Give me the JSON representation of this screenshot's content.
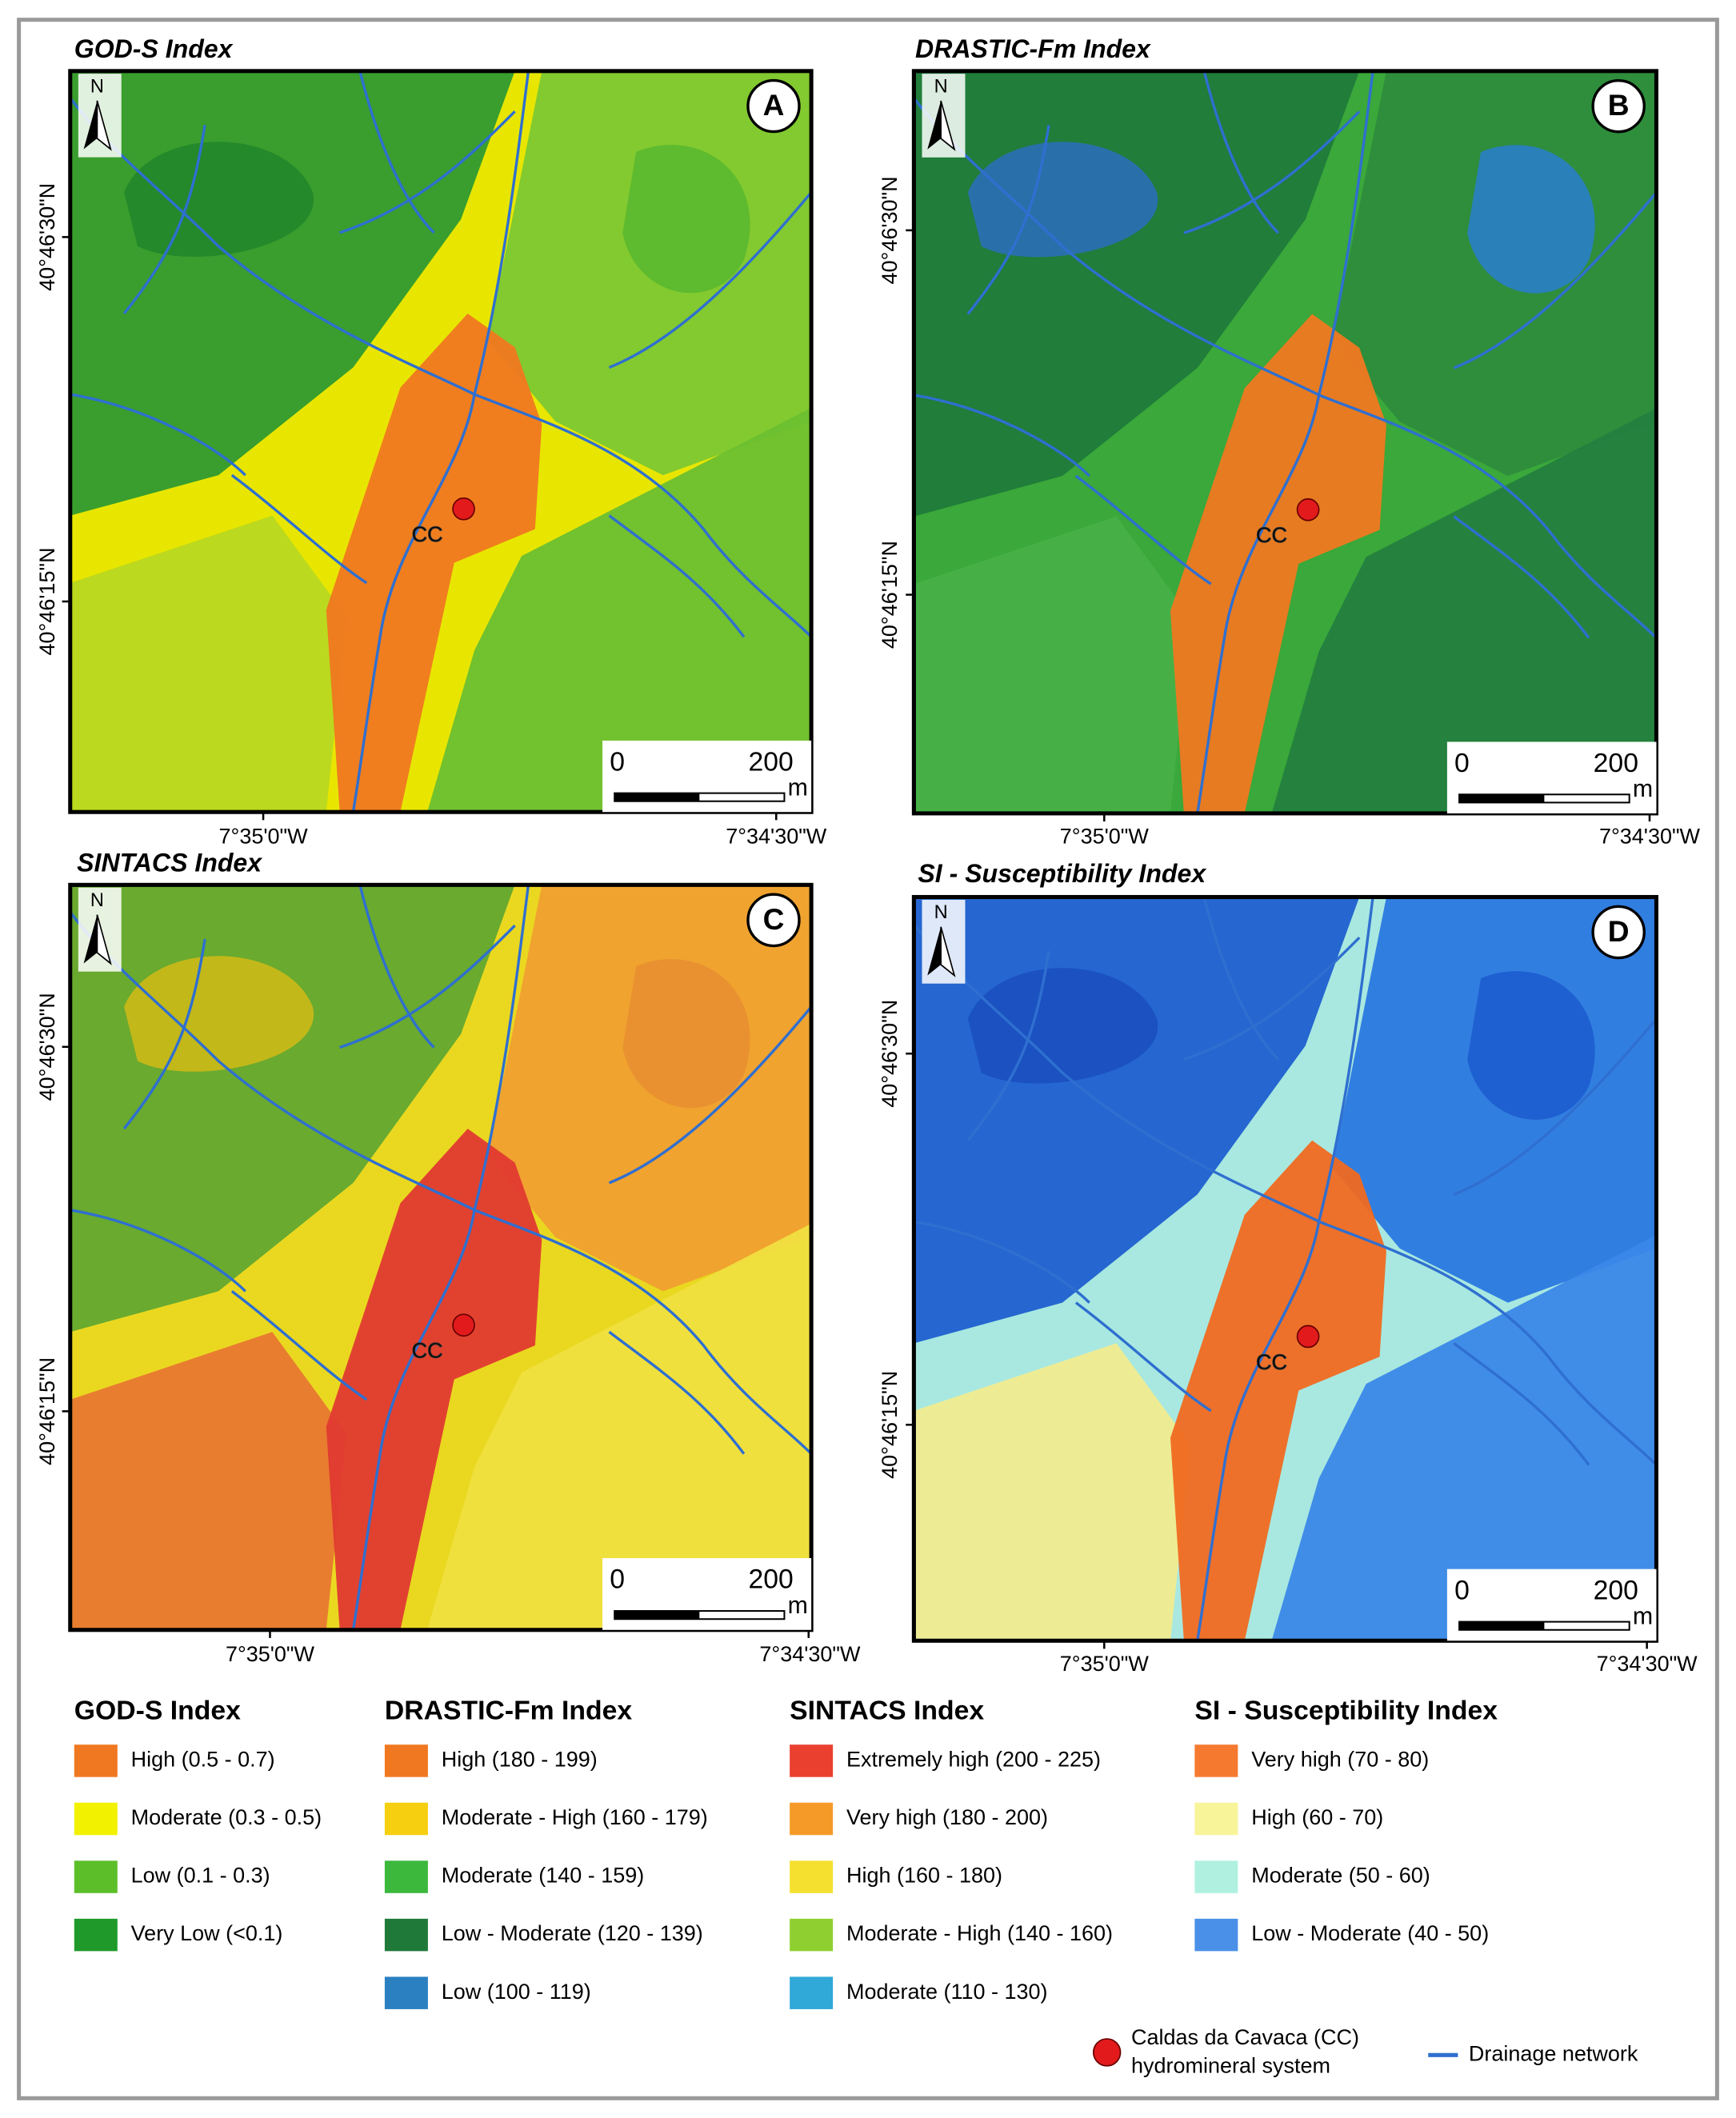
{
  "panels": [
    {
      "title": "GOD-S Index",
      "letter": "A",
      "north": "N",
      "place_label": "CC",
      "lat_labels": [
        "40°46'30\"N",
        "40°46'15\"N"
      ],
      "lon_labels": [
        "7°35'0\"W",
        "7°34'30\"W"
      ],
      "scale": {
        "start": "0",
        "end": "200",
        "unit": "m"
      }
    },
    {
      "title": "DRASTIC-Fm Index",
      "letter": "B",
      "north": "N",
      "place_label": "CC",
      "lat_labels": [
        "40°46'30\"N",
        "40°46'15\"N"
      ],
      "lon_labels": [
        "7°35'0\"W",
        "7°34'30\"W"
      ],
      "scale": {
        "start": "0",
        "end": "200",
        "unit": "m"
      }
    },
    {
      "title": "SINTACS Index",
      "letter": "C",
      "north": "N",
      "place_label": "CC",
      "lat_labels": [
        "40°46'30\"N",
        "40°46'15\"N"
      ],
      "lon_labels": [
        "7°35'0\"W",
        "7°34'30\"W"
      ],
      "scale": {
        "start": "0",
        "end": "200",
        "unit": "m"
      }
    },
    {
      "title": "SI - Susceptibility Index",
      "letter": "D",
      "north": "N",
      "place_label": "CC",
      "lat_labels": [
        "40°46'30\"N",
        "40°46'15\"N"
      ],
      "lon_labels": [
        "7°35'0\"W",
        "7°34'30\"W"
      ],
      "scale": {
        "start": "0",
        "end": "200",
        "unit": "m"
      }
    }
  ],
  "legends": [
    {
      "title": "GOD-S Index",
      "items": [
        {
          "label": "High (0.5 - 0.7)",
          "color": "#f07820"
        },
        {
          "label": "Moderate (0.3 - 0.5)",
          "color": "#f2f200"
        },
        {
          "label": "Low (0.1 - 0.3)",
          "color": "#5cbf2a"
        },
        {
          "label": "Very Low (<0.1)",
          "color": "#1f9a2a"
        }
      ]
    },
    {
      "title": "DRASTIC-Fm Index",
      "items": [
        {
          "label": "High (180 - 199)",
          "color": "#f07820"
        },
        {
          "label": "Moderate - High (160 - 179)",
          "color": "#f5cf10"
        },
        {
          "label": "Moderate (140 - 159)",
          "color": "#3cb83c"
        },
        {
          "label": "Low - Moderate (120 - 139)",
          "color": "#1f7a3a"
        },
        {
          "label": "Low (100 - 119)",
          "color": "#2a80c0"
        }
      ]
    },
    {
      "title": "SINTACS Index",
      "items": [
        {
          "label": "Extremely high (200 - 225)",
          "color": "#ea4030"
        },
        {
          "label": "Very high (180 - 200)",
          "color": "#f59a28"
        },
        {
          "label": "High (160 - 180)",
          "color": "#f5e030"
        },
        {
          "label": "Moderate - High (140 - 160)",
          "color": "#8fd030"
        },
        {
          "label": "Moderate (110 - 130)",
          "color": "#30a8d8"
        }
      ]
    },
    {
      "title": "SI - Susceptibility Index",
      "items": [
        {
          "label": "Very high (70 - 80)",
          "color": "#f57a30"
        },
        {
          "label": "High (60 - 70)",
          "color": "#f8f49a"
        },
        {
          "label": "Moderate (50 - 60)",
          "color": "#b0f0e0"
        },
        {
          "label": "Low - Moderate (40 - 50)",
          "color": "#4a90e8"
        }
      ]
    }
  ],
  "key": {
    "site": "Caldas da Cavaca (CC)",
    "site_line2": "hydromineral system",
    "drainage": "Drainage network"
  }
}
